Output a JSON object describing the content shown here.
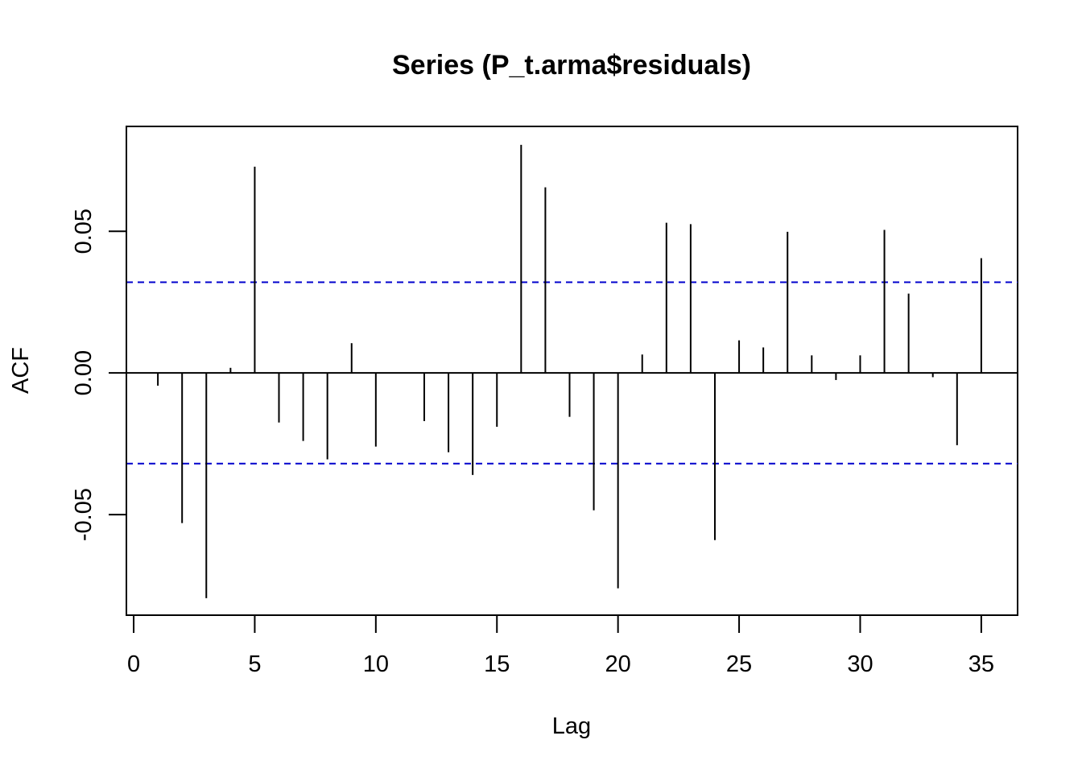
{
  "chart_data": {
    "type": "bar",
    "title": "Series (P_t.arma$residuals)",
    "xlabel": "Lag",
    "ylabel": "ACF",
    "xlim": [
      -0.3,
      36.5
    ],
    "ylim": [
      -0.0855,
      0.087
    ],
    "xticks": [
      0,
      5,
      10,
      15,
      20,
      25,
      30,
      35
    ],
    "xtick_labels": [
      "0",
      "5",
      "10",
      "15",
      "20",
      "25",
      "30",
      "35"
    ],
    "yticks": [
      -0.05,
      0.0,
      0.05
    ],
    "ytick_labels": [
      "-0.05",
      "0.00",
      "0.05"
    ],
    "lags": [
      1,
      2,
      3,
      4,
      5,
      6,
      7,
      8,
      9,
      10,
      11,
      12,
      13,
      14,
      15,
      16,
      17,
      18,
      19,
      20,
      21,
      22,
      23,
      24,
      25,
      26,
      27,
      28,
      29,
      30,
      31,
      32,
      33,
      34,
      35
    ],
    "values": [
      -0.0045,
      -0.053,
      -0.0795,
      0.0018,
      0.0728,
      -0.0175,
      -0.024,
      -0.0305,
      0.0105,
      -0.026,
      0.0,
      -0.017,
      -0.028,
      -0.036,
      -0.019,
      0.0805,
      0.0655,
      -0.0155,
      -0.0485,
      -0.076,
      0.0065,
      0.053,
      0.0525,
      -0.059,
      0.0115,
      0.009,
      0.0498,
      0.0062,
      -0.0025,
      0.0062,
      0.0505,
      0.028,
      -0.0015,
      -0.0255,
      0.0405
    ],
    "confidence_bounds": [
      0.032,
      -0.032
    ],
    "confidence_color": "#0000CC",
    "grid": false,
    "legend": "none"
  }
}
